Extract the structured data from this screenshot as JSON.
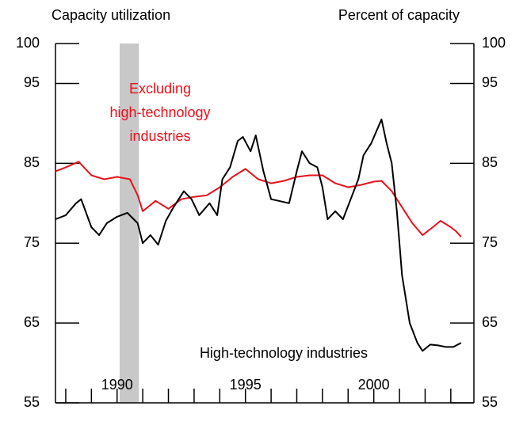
{
  "chart_data": {
    "type": "line",
    "left_axis_title": "Capacity utilization",
    "right_axis_title": "Percent of capacity",
    "annotations": [
      {
        "lines": [
          "Excluding",
          "high-technology",
          "industries"
        ],
        "color": "#e8111b"
      },
      {
        "lines": [
          "High-technology industries"
        ],
        "color": "#000000"
      }
    ],
    "xlim": [
      1987.6,
      2003.9
    ],
    "xticks": [
      1990,
      1995,
      2000
    ],
    "xminor_ticks": [
      1988,
      1989,
      1990,
      1991,
      1992,
      1993,
      1994,
      1995,
      1996,
      1997,
      1998,
      1999,
      2000,
      2001,
      2002,
      2003
    ],
    "ylim": [
      55,
      100
    ],
    "yticks": [
      55,
      65,
      75,
      85,
      95,
      100
    ],
    "recession_shading": [
      [
        1990.1,
        1990.85
      ]
    ],
    "recession_color": "#c8c8c8",
    "series": [
      {
        "name": "Excluding high-technology industries",
        "color": "#e8111b",
        "x": [
          1987.6,
          1988.0,
          1988.5,
          1989.0,
          1989.5,
          1990.0,
          1990.5,
          1990.8,
          1991.0,
          1991.5,
          1992.0,
          1992.5,
          1993.0,
          1993.5,
          1994.0,
          1994.5,
          1995.0,
          1995.5,
          1996.0,
          1996.5,
          1997.0,
          1997.5,
          1998.0,
          1998.5,
          1999.0,
          1999.5,
          2000.0,
          2000.3,
          2000.7,
          2001.0,
          2001.5,
          2001.9,
          2002.3,
          2002.6,
          2003.0,
          2003.2,
          2003.4
        ],
        "values": [
          84,
          84.5,
          85.2,
          83.5,
          83,
          83.3,
          83,
          81,
          79,
          80.3,
          79.3,
          80.5,
          80.8,
          81,
          82,
          83.3,
          84.3,
          83,
          82.5,
          82.8,
          83.3,
          83.5,
          83.5,
          82.5,
          82,
          82.3,
          82.7,
          82.8,
          81.5,
          80,
          77.5,
          76,
          77,
          77.8,
          77,
          76.5,
          75.8
        ]
      },
      {
        "name": "High-technology industries",
        "color": "#000000",
        "x": [
          1987.6,
          1988.0,
          1988.4,
          1988.6,
          1989.0,
          1989.3,
          1989.6,
          1990.0,
          1990.4,
          1990.8,
          1991.0,
          1991.3,
          1991.6,
          1991.9,
          1992.2,
          1992.6,
          1992.9,
          1993.2,
          1993.6,
          1993.9,
          1994.1,
          1994.4,
          1994.7,
          1994.9,
          1995.2,
          1995.4,
          1995.7,
          1996.0,
          1996.3,
          1996.7,
          1997.0,
          1997.2,
          1997.5,
          1997.8,
          1998.0,
          1998.2,
          1998.5,
          1998.8,
          1999.1,
          1999.4,
          1999.6,
          1999.9,
          2000.1,
          2000.3,
          2000.5,
          2000.7,
          2000.9,
          2001.1,
          2001.4,
          2001.7,
          2001.9,
          2002.2,
          2002.5,
          2002.8,
          2003.1,
          2003.4
        ],
        "values": [
          78,
          78.5,
          80,
          80.5,
          77,
          76,
          77.5,
          78.3,
          78.8,
          77.5,
          75,
          76,
          74.8,
          77.8,
          79.5,
          81.5,
          80.5,
          78.5,
          80,
          78.5,
          83,
          84.5,
          87.8,
          88.3,
          86.5,
          88.5,
          84,
          80.5,
          80.3,
          80,
          84,
          86.5,
          85,
          84.5,
          82,
          78,
          79,
          78,
          80.5,
          83,
          86,
          87.5,
          89,
          90.5,
          87.5,
          85,
          79,
          71,
          65,
          62.5,
          61.5,
          62.3,
          62.2,
          62,
          62,
          62.5
        ]
      }
    ]
  }
}
